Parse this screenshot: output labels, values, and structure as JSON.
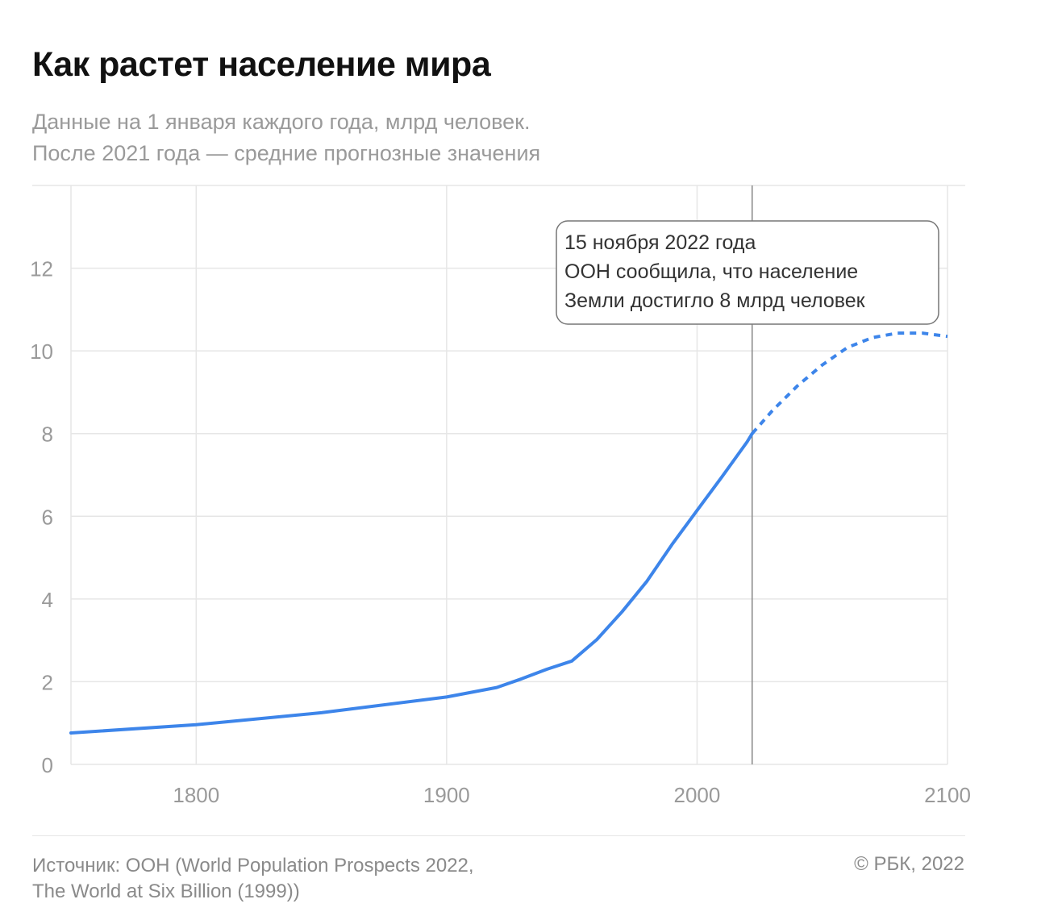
{
  "header": {
    "title": "Как растет население мира",
    "subtitle_line1": "Данные на 1 января каждого года, млрд человек.",
    "subtitle_line2": "После 2021 года — средние прогнозные значения"
  },
  "footer": {
    "source_line1": "Источник: ООН (World Population Prospects 2022,",
    "source_line2": "The World at Six Billion (1999))",
    "copyright": "© РБК, 2022"
  },
  "colors": {
    "line": "#3d85ea",
    "grid": "#e6e6e6",
    "axis_text": "#9a9a9a",
    "marker": "#888888"
  },
  "chart_data": {
    "type": "line",
    "title": "Как растет население мира",
    "xlim": [
      1750,
      2100
    ],
    "ylim": [
      0,
      14
    ],
    "x_ticks": [
      1800,
      1900,
      2000,
      2100
    ],
    "y_ticks": [
      0,
      2,
      4,
      6,
      8,
      10,
      12
    ],
    "grid": true,
    "series": [
      {
        "style": "solid",
        "x": [
          1750,
          1800,
          1850,
          1900,
          1920,
          1930,
          1940,
          1950,
          1960,
          1970,
          1980,
          1990,
          2000,
          2010,
          2020,
          2022
        ],
        "y": [
          0.76,
          0.96,
          1.25,
          1.63,
          1.86,
          2.07,
          2.3,
          2.5,
          3.02,
          3.69,
          4.43,
          5.32,
          6.14,
          6.96,
          7.8,
          8.0
        ]
      },
      {
        "style": "dashed",
        "x": [
          2022,
          2030,
          2040,
          2050,
          2060,
          2070,
          2080,
          2090,
          2100
        ],
        "y": [
          8.0,
          8.55,
          9.15,
          9.66,
          10.08,
          10.32,
          10.43,
          10.43,
          10.35
        ]
      }
    ],
    "annotation": {
      "x": 2022,
      "lines": [
        "15 ноября 2022 года",
        "ООН сообщила, что население",
        "Земли достигло 8 млрд человек"
      ]
    }
  }
}
